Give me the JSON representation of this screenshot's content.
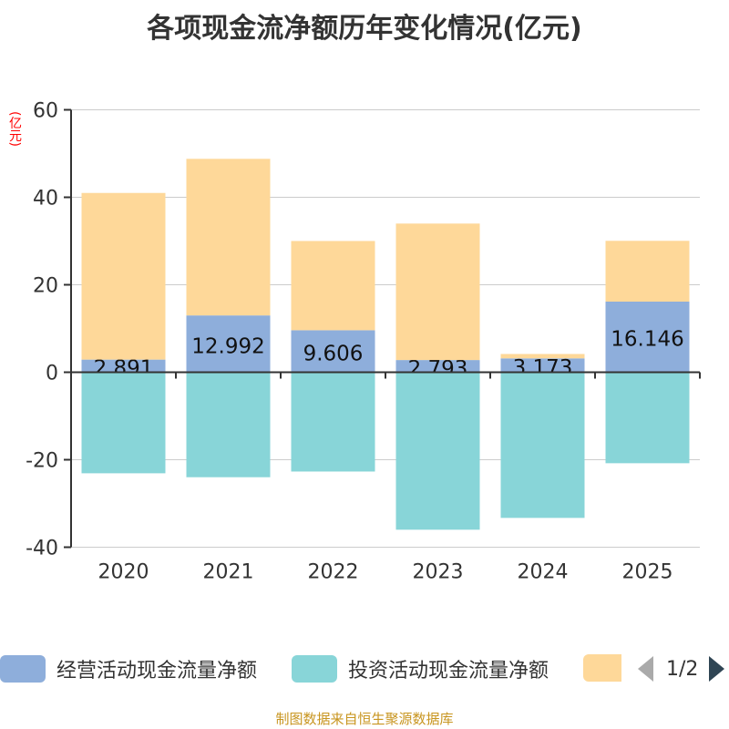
{
  "title": "各项现金流净额历年变化情况(亿元)",
  "unit_label": "(亿元)",
  "source": "制图数据来自恒生聚源数据库",
  "legend_page": "1/2",
  "chart_data": {
    "type": "bar",
    "stacked": true,
    "title": "各项现金流净额历年变化情况(亿元)",
    "ylabel": "(亿元)",
    "ylim": [
      -40,
      60
    ],
    "yticks": [
      -40,
      -20,
      0,
      20,
      40,
      60
    ],
    "categories": [
      "2020",
      "2021",
      "2022",
      "2023",
      "2024",
      "2025"
    ],
    "series": [
      {
        "name": "经营活动现金流量净额",
        "color": "#8eaedb",
        "values": [
          2.891,
          12.992,
          9.606,
          2.793,
          3.173,
          16.146
        ],
        "labels": [
          "2.891",
          "12.992",
          "9.606",
          "2.793",
          "3.173",
          "16.146"
        ]
      },
      {
        "name": "投资活动现金流量净额",
        "color": "#88d5d8",
        "values": [
          -23.1,
          -24.0,
          -22.7,
          -36.0,
          -33.3,
          -20.8
        ]
      },
      {
        "name": "",
        "color": "#fed899",
        "values": [
          38.1,
          35.8,
          20.4,
          31.2,
          1.0,
          13.9
        ]
      }
    ],
    "legend_position": "bottom",
    "grid": true
  }
}
